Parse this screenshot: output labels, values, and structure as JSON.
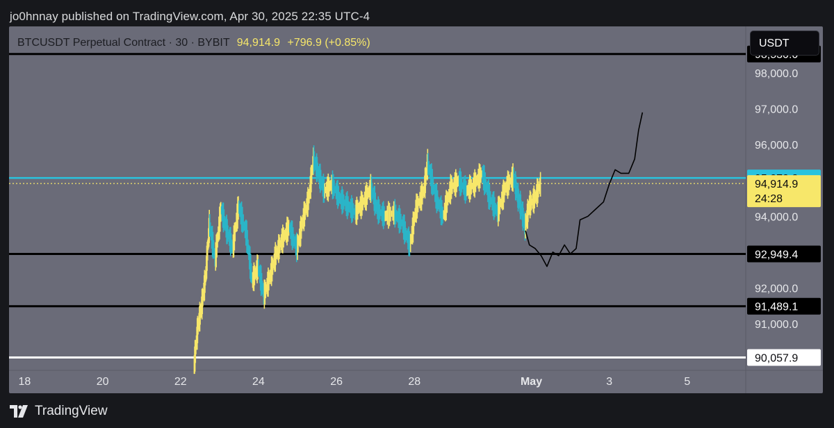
{
  "publisher_line": "jo0hnnay published on TradingView.com, Apr 30, 2025 22:35 UTC-4",
  "legend": {
    "symbol": "BTCUSDT Perpetual Contract · 30 · BYBIT",
    "price": "94,914.9",
    "change": "+796.9 (+0.85%)"
  },
  "currency_button": "USDT",
  "footer": {
    "brand": "TradingView",
    "icon": "tradingview-logo-icon"
  },
  "colors": {
    "chart_bg": "#6a6b78",
    "up_candle": "#f7e76a",
    "down_candle": "#2bb5c8",
    "cyan_line": "#29c3de",
    "black_line": "#000000",
    "white_line": "#ffffff"
  },
  "chart_data": {
    "type": "line",
    "title": "BTCUSDT Perpetual Contract · 30 · BYBIT",
    "ylim": [
      89700,
      99300
    ],
    "y_ticks": [
      {
        "value": 98000,
        "label": "98,000.0"
      },
      {
        "value": 97000,
        "label": "97,000.0"
      },
      {
        "value": 96000,
        "label": "96,000.0"
      },
      {
        "value": 94000,
        "label": "94,000.0"
      },
      {
        "value": 92000,
        "label": "92,000.0"
      },
      {
        "value": 91000,
        "label": "91,000.0"
      }
    ],
    "x_ticks": [
      {
        "day": 18,
        "label": "18"
      },
      {
        "day": 20,
        "label": "20"
      },
      {
        "day": 22,
        "label": "22"
      },
      {
        "day": 24,
        "label": "24"
      },
      {
        "day": 26,
        "label": "26"
      },
      {
        "day": 28,
        "label": "28"
      },
      {
        "day": 31,
        "label": "May"
      },
      {
        "day": 33,
        "label": "3"
      },
      {
        "day": 35,
        "label": "5"
      }
    ],
    "x_unit_note": "",
    "horizontal_levels": [
      {
        "value": 98530,
        "label": "98,530.0",
        "style": "black"
      },
      {
        "value": 95070.2,
        "label": "95,070.2",
        "style": "cyan"
      },
      {
        "value": 92949.4,
        "label": "92,949.4",
        "style": "black"
      },
      {
        "value": 91489.1,
        "label": "91,489.1",
        "style": "black"
      },
      {
        "value": 90057.9,
        "label": "90,057.9",
        "style": "white"
      }
    ],
    "last_price": {
      "value": 94914.9,
      "label": "94,914.9",
      "countdown": "24:28"
    },
    "series": [
      {
        "name": "",
        "kind": "price",
        "points": [
          [
            22.35,
            89800
          ],
          [
            22.45,
            90900
          ],
          [
            22.55,
            91500
          ],
          [
            22.65,
            92300
          ],
          [
            22.75,
            93800
          ],
          [
            22.9,
            92800
          ],
          [
            23.05,
            94200
          ],
          [
            23.2,
            93600
          ],
          [
            23.35,
            93100
          ],
          [
            23.5,
            94300
          ],
          [
            23.7,
            93500
          ],
          [
            23.85,
            92200
          ],
          [
            24.0,
            92600
          ],
          [
            24.15,
            91800
          ],
          [
            24.3,
            92300
          ],
          [
            24.45,
            92900
          ],
          [
            24.6,
            93300
          ],
          [
            24.8,
            93700
          ],
          [
            25.0,
            93100
          ],
          [
            25.15,
            93900
          ],
          [
            25.3,
            94500
          ],
          [
            25.42,
            95600
          ],
          [
            25.55,
            95200
          ],
          [
            25.7,
            94700
          ],
          [
            25.9,
            94900
          ],
          [
            26.1,
            94500
          ],
          [
            26.3,
            94300
          ],
          [
            26.5,
            94100
          ],
          [
            26.7,
            94400
          ],
          [
            26.9,
            94800
          ],
          [
            27.05,
            94200
          ],
          [
            27.25,
            94000
          ],
          [
            27.5,
            94100
          ],
          [
            27.7,
            93800
          ],
          [
            27.9,
            93200
          ],
          [
            28.05,
            94200
          ],
          [
            28.25,
            94700
          ],
          [
            28.35,
            95500
          ],
          [
            28.55,
            94600
          ],
          [
            28.75,
            94000
          ],
          [
            28.95,
            94800
          ],
          [
            29.15,
            95000
          ],
          [
            29.35,
            94700
          ],
          [
            29.55,
            94900
          ],
          [
            29.75,
            95200
          ],
          [
            29.95,
            94500
          ],
          [
            30.15,
            94100
          ],
          [
            30.35,
            94800
          ],
          [
            30.55,
            95100
          ],
          [
            30.65,
            94600
          ],
          [
            30.75,
            94200
          ],
          [
            30.85,
            93700
          ],
          [
            30.95,
            94300
          ],
          [
            31.1,
            94500
          ],
          [
            31.25,
            94914.9
          ]
        ]
      },
      {
        "name": "",
        "kind": "projection",
        "points": [
          [
            30.85,
            93600
          ],
          [
            30.95,
            93200
          ],
          [
            31.1,
            93100
          ],
          [
            31.25,
            92900
          ],
          [
            31.4,
            92600
          ],
          [
            31.55,
            93000
          ],
          [
            31.7,
            92900
          ],
          [
            31.85,
            93200
          ],
          [
            32.0,
            92950
          ],
          [
            32.15,
            93100
          ],
          [
            32.25,
            93900
          ],
          [
            32.45,
            94000
          ],
          [
            32.65,
            94200
          ],
          [
            32.85,
            94400
          ],
          [
            33.0,
            94900
          ],
          [
            33.15,
            95300
          ],
          [
            33.3,
            95200
          ],
          [
            33.5,
            95200
          ],
          [
            33.65,
            95600
          ],
          [
            33.75,
            96400
          ],
          [
            33.85,
            96900
          ]
        ]
      }
    ]
  }
}
